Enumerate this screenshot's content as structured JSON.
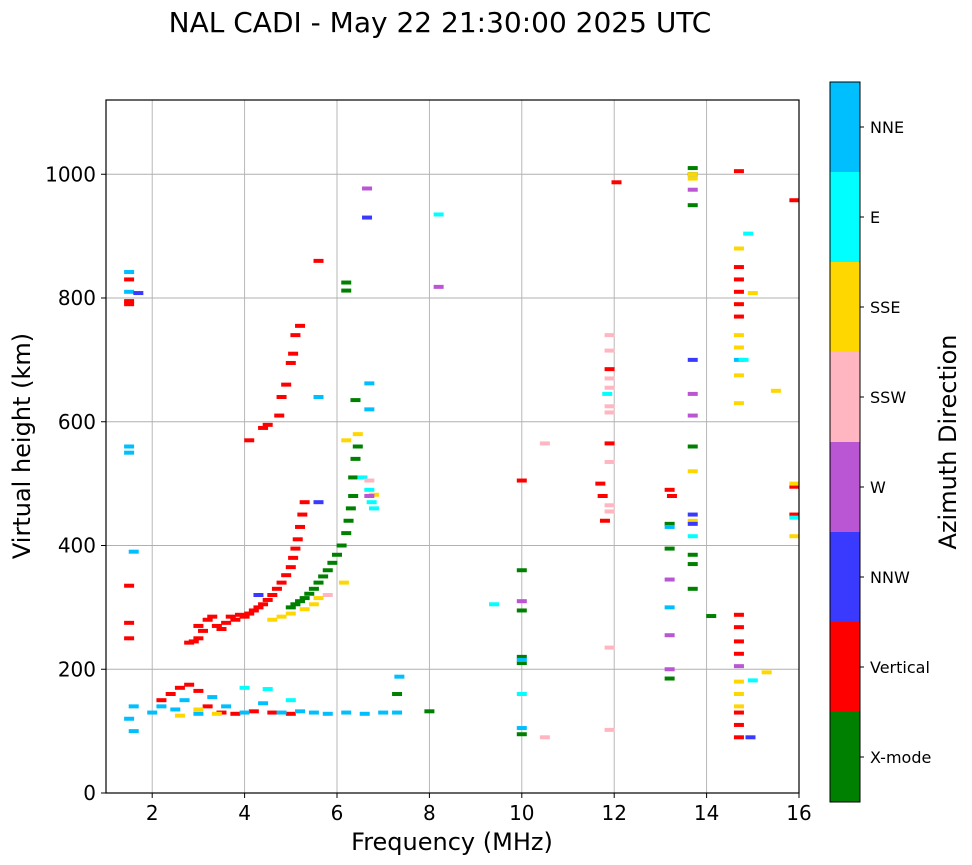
{
  "chart_data": {
    "type": "scatter",
    "title": "NAL CADI - May 22 21:30:00 2025 UTC",
    "xlabel": "Frequency (MHz)",
    "ylabel": "Virtual height (km)",
    "xlim": [
      1.0,
      16.0
    ],
    "ylim": [
      0,
      1120
    ],
    "xticks": [
      2,
      4,
      6,
      8,
      10,
      12,
      14,
      16
    ],
    "yticks": [
      0,
      200,
      400,
      600,
      800,
      1000
    ],
    "grid": true,
    "colorbar": {
      "label": "Azimuth Direction",
      "categories": [
        {
          "name": "X-mode",
          "color": "#008000"
        },
        {
          "name": "Vertical",
          "color": "#ff0000"
        },
        {
          "name": "NNW",
          "color": "#3a3aff"
        },
        {
          "name": "W",
          "color": "#ba55d3"
        },
        {
          "name": "SSW",
          "color": "#ffb6c1"
        },
        {
          "name": "SSE",
          "color": "#ffd700"
        },
        {
          "name": "E",
          "color": "#00ffff"
        },
        {
          "name": "NNE",
          "color": "#00bfff"
        }
      ]
    },
    "series": [
      {
        "name": "Vertical",
        "color": "#ff0000",
        "points": [
          [
            1.5,
            795
          ],
          [
            1.5,
            790
          ],
          [
            1.5,
            830
          ],
          [
            1.5,
            335
          ],
          [
            1.5,
            275
          ],
          [
            1.5,
            250
          ],
          [
            3.0,
            270
          ],
          [
            3.1,
            262
          ],
          [
            3.2,
            280
          ],
          [
            3.3,
            285
          ],
          [
            3.4,
            270
          ],
          [
            3.5,
            265
          ],
          [
            3.6,
            275
          ],
          [
            3.7,
            285
          ],
          [
            3.8,
            280
          ],
          [
            3.9,
            288
          ],
          [
            4.0,
            285
          ],
          [
            4.1,
            290
          ],
          [
            4.2,
            295
          ],
          [
            4.3,
            300
          ],
          [
            4.4,
            305
          ],
          [
            4.5,
            312
          ],
          [
            4.6,
            320
          ],
          [
            4.7,
            330
          ],
          [
            4.8,
            340
          ],
          [
            4.9,
            352
          ],
          [
            5.0,
            365
          ],
          [
            5.05,
            380
          ],
          [
            5.1,
            395
          ],
          [
            5.15,
            410
          ],
          [
            5.2,
            430
          ],
          [
            5.25,
            450
          ],
          [
            5.3,
            470
          ],
          [
            4.1,
            570
          ],
          [
            4.4,
            590
          ],
          [
            4.5,
            595
          ],
          [
            4.8,
            640
          ],
          [
            4.9,
            660
          ],
          [
            5.0,
            695
          ],
          [
            5.05,
            710
          ],
          [
            5.1,
            740
          ],
          [
            5.2,
            755
          ],
          [
            4.75,
            610
          ],
          [
            5.6,
            860
          ],
          [
            2.8,
            243
          ],
          [
            2.9,
            245
          ],
          [
            3.0,
            250
          ],
          [
            2.2,
            150
          ],
          [
            2.4,
            160
          ],
          [
            2.6,
            170
          ],
          [
            2.8,
            175
          ],
          [
            3.0,
            165
          ],
          [
            3.2,
            140
          ],
          [
            3.5,
            130
          ],
          [
            3.8,
            128
          ],
          [
            4.2,
            132
          ],
          [
            4.6,
            130
          ],
          [
            5.0,
            128
          ],
          [
            10.0,
            505
          ],
          [
            11.7,
            500
          ],
          [
            11.75,
            480
          ],
          [
            11.8,
            440
          ],
          [
            11.9,
            565
          ],
          [
            11.9,
            685
          ],
          [
            12.05,
            987
          ],
          [
            13.2,
            490
          ],
          [
            13.25,
            480
          ],
          [
            14.7,
            1005
          ],
          [
            14.7,
            850
          ],
          [
            14.7,
            830
          ],
          [
            14.7,
            810
          ],
          [
            14.7,
            790
          ],
          [
            14.7,
            770
          ],
          [
            14.7,
            288
          ],
          [
            14.7,
            268
          ],
          [
            14.7,
            245
          ],
          [
            14.7,
            225
          ],
          [
            14.7,
            130
          ],
          [
            14.7,
            110
          ],
          [
            14.7,
            90
          ],
          [
            15.9,
            958
          ],
          [
            15.9,
            495
          ],
          [
            15.9,
            450
          ]
        ]
      },
      {
        "name": "X-mode",
        "color": "#008000",
        "points": [
          [
            5.0,
            300
          ],
          [
            5.1,
            305
          ],
          [
            5.2,
            310
          ],
          [
            5.3,
            315
          ],
          [
            5.4,
            322
          ],
          [
            5.5,
            330
          ],
          [
            5.6,
            340
          ],
          [
            5.7,
            350
          ],
          [
            5.8,
            360
          ],
          [
            5.9,
            372
          ],
          [
            6.0,
            385
          ],
          [
            6.1,
            400
          ],
          [
            6.2,
            420
          ],
          [
            6.25,
            440
          ],
          [
            6.3,
            460
          ],
          [
            6.35,
            480
          ],
          [
            6.35,
            510
          ],
          [
            6.4,
            540
          ],
          [
            6.45,
            560
          ],
          [
            6.4,
            635
          ],
          [
            6.2,
            825
          ],
          [
            6.2,
            812
          ],
          [
            7.3,
            160
          ],
          [
            8.0,
            132
          ],
          [
            10.0,
            360
          ],
          [
            10.0,
            295
          ],
          [
            10.0,
            220
          ],
          [
            10.0,
            210
          ],
          [
            10.0,
            95
          ],
          [
            13.2,
            435
          ],
          [
            13.2,
            395
          ],
          [
            13.2,
            185
          ],
          [
            13.7,
            1010
          ],
          [
            13.7,
            1000
          ],
          [
            13.7,
            950
          ],
          [
            13.7,
            560
          ],
          [
            13.7,
            385
          ],
          [
            13.7,
            370
          ],
          [
            13.7,
            330
          ],
          [
            14.1,
            286
          ]
        ]
      },
      {
        "name": "NNE",
        "color": "#00bfff",
        "points": [
          [
            1.5,
            560
          ],
          [
            1.5,
            550
          ],
          [
            1.5,
            810
          ],
          [
            1.5,
            842
          ],
          [
            1.6,
            390
          ],
          [
            1.6,
            140
          ],
          [
            1.5,
            120
          ],
          [
            1.6,
            100
          ],
          [
            2.0,
            130
          ],
          [
            2.2,
            140
          ],
          [
            2.5,
            135
          ],
          [
            2.7,
            150
          ],
          [
            3.0,
            128
          ],
          [
            3.3,
            155
          ],
          [
            3.6,
            140
          ],
          [
            4.0,
            130
          ],
          [
            4.4,
            145
          ],
          [
            4.8,
            130
          ],
          [
            5.2,
            132
          ],
          [
            5.5,
            130
          ],
          [
            5.8,
            128
          ],
          [
            6.2,
            130
          ],
          [
            6.6,
            128
          ],
          [
            7.0,
            130
          ],
          [
            7.3,
            130
          ],
          [
            7.35,
            188
          ],
          [
            5.6,
            640
          ],
          [
            6.7,
            662
          ],
          [
            6.7,
            620
          ],
          [
            10.0,
            105
          ],
          [
            10.0,
            215
          ],
          [
            13.2,
            430
          ],
          [
            13.2,
            300
          ],
          [
            14.7,
            700
          ]
        ]
      },
      {
        "name": "E",
        "color": "#00ffff",
        "points": [
          [
            4.0,
            170
          ],
          [
            4.5,
            168
          ],
          [
            5.0,
            150
          ],
          [
            6.7,
            490
          ],
          [
            6.75,
            470
          ],
          [
            6.8,
            460
          ],
          [
            6.55,
            510
          ],
          [
            8.2,
            935
          ],
          [
            9.4,
            305
          ],
          [
            10.0,
            160
          ],
          [
            11.85,
            645
          ],
          [
            13.7,
            415
          ],
          [
            14.8,
            700
          ],
          [
            14.9,
            904
          ],
          [
            15.0,
            182
          ],
          [
            15.9,
            445
          ]
        ]
      },
      {
        "name": "SSE",
        "color": "#ffd700",
        "points": [
          [
            4.6,
            280
          ],
          [
            4.8,
            285
          ],
          [
            5.0,
            290
          ],
          [
            5.3,
            297
          ],
          [
            5.5,
            305
          ],
          [
            5.6,
            315
          ],
          [
            6.15,
            340
          ],
          [
            6.2,
            570
          ],
          [
            6.45,
            580
          ],
          [
            6.8,
            482
          ],
          [
            2.6,
            125
          ],
          [
            3.0,
            135
          ],
          [
            3.4,
            128
          ],
          [
            13.7,
            520
          ],
          [
            13.7,
            440
          ],
          [
            13.7,
            1000
          ],
          [
            13.7,
            993
          ],
          [
            14.7,
            880
          ],
          [
            14.7,
            740
          ],
          [
            14.7,
            720
          ],
          [
            14.7,
            675
          ],
          [
            14.7,
            630
          ],
          [
            14.7,
            180
          ],
          [
            14.7,
            160
          ],
          [
            14.7,
            140
          ],
          [
            15.0,
            808
          ],
          [
            15.3,
            195
          ],
          [
            15.5,
            650
          ],
          [
            15.9,
            415
          ],
          [
            15.9,
            500
          ]
        ]
      },
      {
        "name": "W",
        "color": "#ba55d3",
        "points": [
          [
            6.65,
            977
          ],
          [
            6.7,
            480
          ],
          [
            8.2,
            818
          ],
          [
            10.0,
            310
          ],
          [
            13.2,
            345
          ],
          [
            13.2,
            255
          ],
          [
            13.2,
            200
          ],
          [
            13.7,
            975
          ],
          [
            13.7,
            645
          ],
          [
            13.7,
            610
          ],
          [
            14.7,
            205
          ]
        ]
      },
      {
        "name": "SSW",
        "color": "#ffb6c1",
        "points": [
          [
            5.8,
            320
          ],
          [
            6.7,
            505
          ],
          [
            10.5,
            565
          ],
          [
            10.5,
            90
          ],
          [
            11.9,
            740
          ],
          [
            11.9,
            715
          ],
          [
            11.9,
            670
          ],
          [
            11.9,
            655
          ],
          [
            11.9,
            625
          ],
          [
            11.9,
            615
          ],
          [
            11.9,
            535
          ],
          [
            11.9,
            465
          ],
          [
            11.9,
            455
          ],
          [
            11.9,
            235
          ],
          [
            11.9,
            102
          ]
        ]
      },
      {
        "name": "NNW",
        "color": "#3a3aff",
        "points": [
          [
            1.7,
            808
          ],
          [
            6.65,
            930
          ],
          [
            5.6,
            470
          ],
          [
            4.3,
            320
          ],
          [
            13.7,
            700
          ],
          [
            13.7,
            450
          ],
          [
            13.7,
            435
          ],
          [
            14.95,
            90
          ]
        ]
      }
    ]
  }
}
